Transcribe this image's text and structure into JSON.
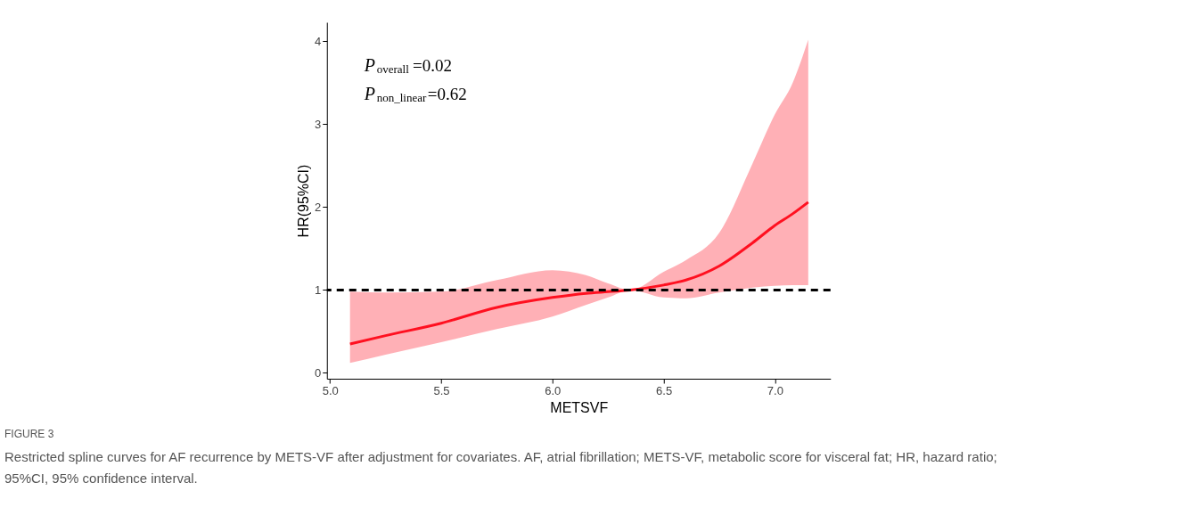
{
  "chart_data": {
    "type": "line",
    "xlabel": "METSVF",
    "ylabel": "HR(95%CI)",
    "x": [
      5.09,
      5.25,
      5.5,
      5.75,
      6.0,
      6.15,
      6.25,
      6.35,
      6.5,
      6.6,
      6.75,
      6.9,
      7.0,
      7.08,
      7.15
    ],
    "series": [
      {
        "color": "#ff1020",
        "values": [
          0.35,
          0.45,
          0.6,
          0.79,
          0.91,
          0.96,
          0.98,
          1.0,
          1.06,
          1.12,
          1.29,
          1.57,
          1.78,
          1.92,
          2.06
        ],
        "lower": [
          0.12,
          0.22,
          0.37,
          0.53,
          0.68,
          0.82,
          0.91,
          1.0,
          0.91,
          0.9,
          0.97,
          1.03,
          1.05,
          1.06,
          1.06
        ],
        "upper": [
          0.98,
          0.97,
          0.98,
          1.12,
          1.24,
          1.18,
          1.08,
          1.0,
          1.22,
          1.36,
          1.69,
          2.53,
          3.12,
          3.5,
          4.02
        ]
      }
    ],
    "xlim": [
      4.986,
      7.25
    ],
    "xticks": [
      {
        "value": 5.0,
        "label": "5.0"
      },
      5.5,
      {
        "value": 6.0,
        "label": "6.0"
      },
      6.5,
      {
        "value": 7.0,
        "label": "7.0"
      }
    ],
    "ylim": [
      -0.07,
      4.23
    ],
    "yticks": [
      0,
      1,
      2,
      3,
      4
    ],
    "ref_lines": [
      {
        "axis": "y",
        "value": 1,
        "color": "#000000",
        "line_style": "dashed"
      }
    ],
    "grid": false,
    "marker": "none",
    "line_style": "solid",
    "annotations": [
      "P$_{overall}$=0.02",
      "P$_{non_linear}$=0.62",
      "FIGURE 3",
      "Restricted spline curves for AF recurrence by METS-VF after adjustment for covariates. AF, atrial fibrillation; METS-VF, metabolic score for visceral fat; HR, hazard ratio; 95%CI, 95% confidence interval."
    ]
  }
}
